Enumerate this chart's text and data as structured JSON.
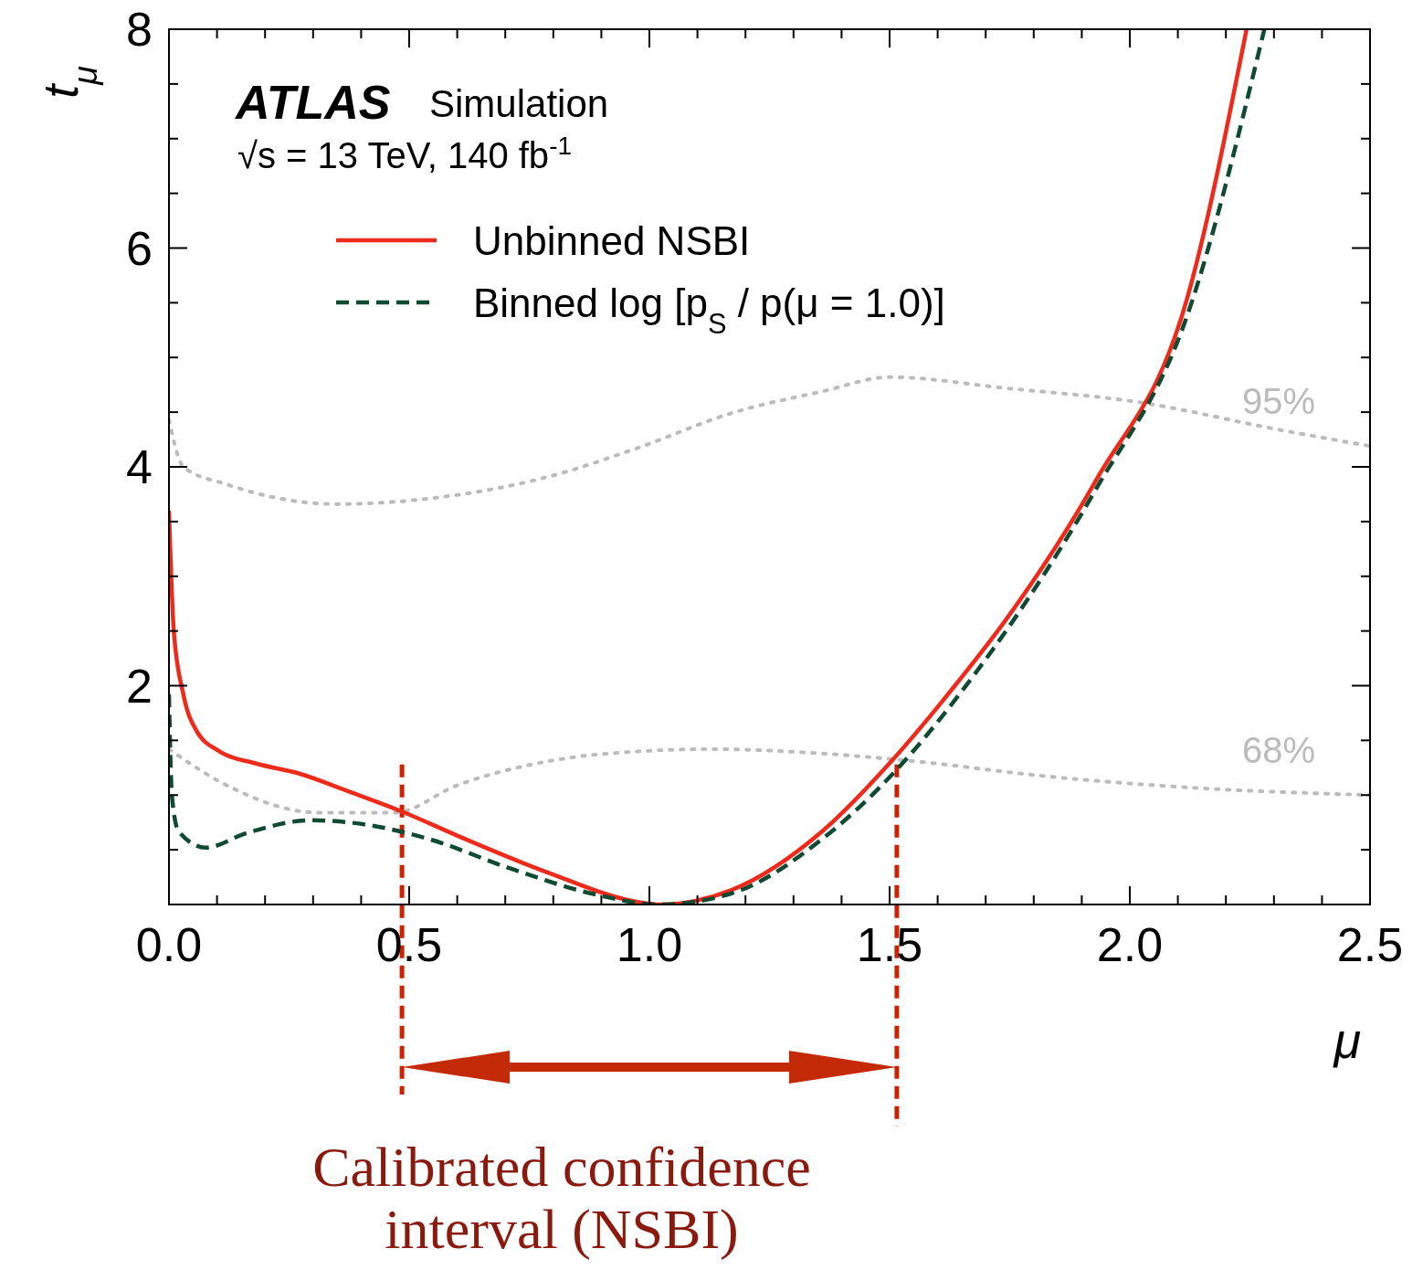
{
  "chart_data": {
    "type": "line",
    "xlabel": "μ",
    "ylabel": "t$_{μ}$",
    "xlim": [
      0,
      2.5
    ],
    "ylim": [
      0,
      8
    ],
    "xticks": [
      {
        "value": 0,
        "label": "0.0"
      },
      {
        "value": 0.1,
        "label": null
      },
      {
        "value": 0.2,
        "label": null
      },
      {
        "value": 0.3,
        "label": null
      },
      {
        "value": 0.4,
        "label": null
      },
      {
        "value": 0.5,
        "label": "0.5"
      },
      {
        "value": 0.6,
        "label": null
      },
      {
        "value": 0.7,
        "label": null
      },
      {
        "value": 0.8,
        "label": null
      },
      {
        "value": 0.9,
        "label": null
      },
      {
        "value": 1,
        "label": "1.0"
      },
      {
        "value": 1.1,
        "label": null
      },
      {
        "value": 1.2,
        "label": null
      },
      {
        "value": 1.3,
        "label": null
      },
      {
        "value": 1.4,
        "label": null
      },
      {
        "value": 1.5,
        "label": "1.5"
      },
      {
        "value": 1.6,
        "label": null
      },
      {
        "value": 1.7,
        "label": null
      },
      {
        "value": 1.8,
        "label": null
      },
      {
        "value": 1.9,
        "label": null
      },
      {
        "value": 2,
        "label": "2.0"
      },
      {
        "value": 2.1,
        "label": null
      },
      {
        "value": 2.2,
        "label": null
      },
      {
        "value": 2.3,
        "label": null
      },
      {
        "value": 2.4,
        "label": null
      },
      {
        "value": 2.5,
        "label": "2.5"
      }
    ],
    "yticks": [
      {
        "value": 0,
        "label": null
      },
      {
        "value": 0.5,
        "label": null
      },
      {
        "value": 1,
        "label": null
      },
      {
        "value": 1.5,
        "label": null
      },
      2,
      {
        "value": 2.5,
        "label": null
      },
      {
        "value": 3,
        "label": null
      },
      {
        "value": 3.5,
        "label": null
      },
      4,
      {
        "value": 4.5,
        "label": null
      },
      {
        "value": 5,
        "label": null
      },
      {
        "value": 5.5,
        "label": null
      },
      6,
      {
        "value": 6.5,
        "label": null
      },
      {
        "value": 7,
        "label": null
      },
      {
        "value": 7.5,
        "label": null
      },
      8
    ],
    "grid": false,
    "legend": "top left",
    "series": [
      {
        "name": "95%",
        "color": "#bbbbbb",
        "line_style": "dotted",
        "x": [
          0,
          0.03,
          0.12,
          0.35,
          0.56,
          0.79,
          0.98,
          1.17,
          1.36,
          1.5,
          1.74,
          2.02,
          2.31,
          2.5
        ],
        "values": [
          4.43,
          4.0,
          3.84,
          3.66,
          3.72,
          3.91,
          4.18,
          4.49,
          4.69,
          4.82,
          4.72,
          4.59,
          4.34,
          4.19
        ]
      },
      {
        "name": "68%",
        "color": "#bbbbbb",
        "line_style": "dotted",
        "x": [
          0,
          0.12,
          0.31,
          0.47,
          0.6,
          0.79,
          0.98,
          1.13,
          1.36,
          1.55,
          1.83,
          2.12,
          2.5
        ],
        "values": [
          1.42,
          1.09,
          0.84,
          0.84,
          1.09,
          1.31,
          1.4,
          1.42,
          1.38,
          1.31,
          1.17,
          1.07,
          1.0
        ]
      },
      {
        "name": "Unbinned NSBI",
        "color": "#ee2a1b",
        "line_style": "solid",
        "x": [
          0,
          0.01,
          0.03,
          0.057,
          0.105,
          0.18,
          0.276,
          0.37,
          0.485,
          0.6,
          0.79,
          0.98,
          1.02,
          1.17,
          1.36,
          1.51,
          1.645,
          1.74,
          1.93,
          2.12,
          2.243
        ],
        "values": [
          3.6,
          2.5,
          1.92,
          1.59,
          1.4,
          1.29,
          1.19,
          1.04,
          0.85,
          0.63,
          0.29,
          0.02,
          0,
          0.13,
          0.67,
          1.34,
          2.05,
          2.59,
          3.88,
          5.55,
          8
        ]
      },
      {
        "name": "Binned log [p$_{S}$ / p(μ = 1.0)]",
        "color": "#0f4a33",
        "line_style": "dashed",
        "x": [
          0,
          0.006,
          0.02,
          0.076,
          0.16,
          0.295,
          0.41,
          0.54,
          0.71,
          0.88,
          1.02,
          1.17,
          1.36,
          1.51,
          1.645,
          1.93,
          2.12,
          2.28
        ],
        "values": [
          1.92,
          1.0,
          0.67,
          0.52,
          0.65,
          0.77,
          0.73,
          0.6,
          0.33,
          0.1,
          0,
          0.1,
          0.6,
          1.21,
          1.92,
          3.8,
          5.39,
          8
        ]
      }
    ],
    "ref_lines": [
      {
        "axis": "x",
        "value": 0.485,
        "color": "#cc2200",
        "line_style": "dashed"
      },
      {
        "axis": "x",
        "value": 1.515,
        "color": "#cc2200",
        "line_style": "dashed"
      }
    ],
    "annotations": [
      "ATLAS",
      "Simulation",
      "√s = 13 TeV, 140 fb$^{-1}$",
      "Calibrated confidence interval (NSBI)"
    ]
  }
}
